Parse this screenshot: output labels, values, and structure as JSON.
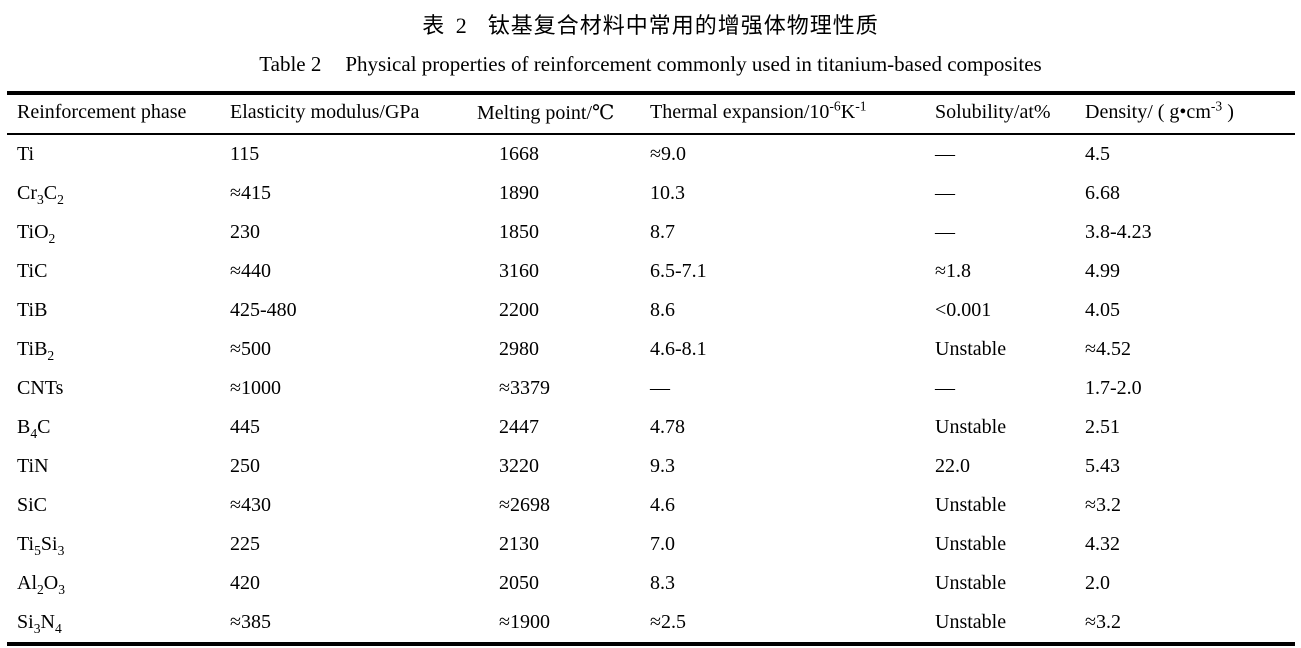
{
  "captions": {
    "zh": {
      "label": "表 2",
      "text": "钛基复合材料中常用的增强体物理性质"
    },
    "en": {
      "label": "Table 2",
      "text": "Physical properties of reinforcement commonly used in titanium-based composites"
    }
  },
  "table": {
    "columns": [
      {
        "key": "phase",
        "label": "Reinforcement phase"
      },
      {
        "key": "modulus",
        "label": "Elasticity modulus/GPa"
      },
      {
        "key": "melting",
        "label": "Melting point/℃"
      },
      {
        "key": "expansion",
        "label": "Thermal expansion/10^-6^K^-1^"
      },
      {
        "key": "solubility",
        "label": "Solubility/at%"
      },
      {
        "key": "density",
        "label": "Density/ ( g•cm^-3^ )"
      }
    ],
    "rows": [
      [
        "Ti",
        "115",
        "1668",
        "≈9.0",
        "—",
        "4.5"
      ],
      [
        "Cr~3~C~2~",
        "≈415",
        "1890",
        "10.3",
        "—",
        "6.68"
      ],
      [
        "TiO~2~",
        "230",
        "1850",
        "8.7",
        "—",
        "3.8-4.23"
      ],
      [
        "TiC",
        "≈440",
        "3160",
        "6.5-7.1",
        "≈1.8",
        "4.99"
      ],
      [
        "TiB",
        "425-480",
        "2200",
        "8.6",
        "<0.001",
        "4.05"
      ],
      [
        "TiB~2~",
        "≈500",
        "2980",
        "4.6-8.1",
        "Unstable",
        "≈4.52"
      ],
      [
        "CNTs",
        "≈1000",
        "≈3379",
        "—",
        "—",
        "1.7-2.0"
      ],
      [
        "B~4~C",
        "445",
        "2447",
        "4.78",
        "Unstable",
        "2.51"
      ],
      [
        "TiN",
        "250",
        "3220",
        "9.3",
        "22.0",
        "5.43"
      ],
      [
        "SiC",
        "≈430",
        "≈2698",
        "4.6",
        "Unstable",
        "≈3.2"
      ],
      [
        "Ti~5~Si~3~",
        "225",
        "2130",
        "7.0",
        "Unstable",
        "4.32"
      ],
      [
        "Al~2~O~3~",
        "420",
        "2050",
        "8.3",
        "Unstable",
        "2.0"
      ],
      [
        "Si~3~N~4~",
        "≈385",
        "≈1900",
        "≈2.5",
        "Unstable",
        "≈3.2"
      ]
    ]
  }
}
